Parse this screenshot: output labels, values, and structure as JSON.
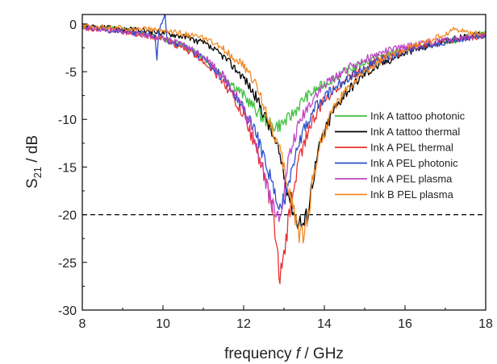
{
  "chart_data": {
    "type": "line",
    "xlabel_prefix": "frequency ",
    "xlabel_symbol": "f",
    "xlabel_unit": " / GHz",
    "ylabel_main": "S",
    "ylabel_sub": "21",
    "ylabel_unit": " / dB",
    "xlim": [
      8,
      18
    ],
    "ylim": [
      -30,
      1
    ],
    "xticks": [
      8,
      10,
      12,
      14,
      16,
      18
    ],
    "yticks": [
      0,
      -5,
      -10,
      -15,
      -20,
      -25,
      -30
    ],
    "grid": false,
    "legend_position": "right",
    "reference_line": {
      "y": -20,
      "style": "dashed",
      "color": "#000000"
    },
    "series": [
      {
        "name": "Ink A tattoo photonic",
        "color": "#3fbf3f",
        "x": [
          8,
          8.5,
          9,
          9.5,
          10,
          10.5,
          11,
          11.5,
          12,
          12.3,
          12.5,
          12.7,
          12.9,
          13.1,
          13.3,
          13.5,
          14,
          14.5,
          15,
          15.5,
          16,
          16.5,
          17,
          17.3,
          17.5,
          17.8,
          18
        ],
        "y": [
          -0.3,
          -0.4,
          -0.6,
          -1.0,
          -1.5,
          -2.3,
          -3.5,
          -5.3,
          -7.5,
          -9.0,
          -10.0,
          -10.7,
          -10.6,
          -10.0,
          -9.0,
          -7.8,
          -6.3,
          -5.0,
          -4.0,
          -3.2,
          -2.6,
          -2.2,
          -1.8,
          -1.7,
          -1.4,
          -1.1,
          -0.9
        ]
      },
      {
        "name": "Ink A tattoo thermal",
        "color": "#000000",
        "x": [
          8,
          9,
          10,
          10.5,
          11,
          11.5,
          12,
          12.3,
          12.6,
          12.9,
          13.1,
          13.3,
          13.5,
          13.6,
          13.7,
          13.9,
          14.2,
          14.5,
          15,
          15.5,
          16,
          16.5,
          17,
          17.5,
          18
        ],
        "y": [
          -0.3,
          -0.5,
          -0.9,
          -1.3,
          -2.0,
          -3.4,
          -5.6,
          -7.6,
          -10.3,
          -13.8,
          -17.5,
          -20.4,
          -21.0,
          -19.5,
          -16.5,
          -12.5,
          -9.3,
          -7.3,
          -5.2,
          -4.0,
          -3.0,
          -2.4,
          -1.8,
          -1.3,
          -1.0
        ]
      },
      {
        "name": "Ink A PEL thermal",
        "color": "#e8302f",
        "x": [
          8,
          9,
          9.5,
          10,
          10.5,
          11,
          11.5,
          12,
          12.3,
          12.5,
          12.7,
          12.8,
          12.9,
          13.0,
          13.1,
          13.2,
          13.4,
          13.6,
          14,
          14.5,
          15,
          15.5,
          16,
          16.5,
          17,
          17.5,
          18
        ],
        "y": [
          -0.4,
          -0.8,
          -1.1,
          -1.6,
          -2.5,
          -3.8,
          -6.0,
          -9.6,
          -12.8,
          -15.6,
          -19.4,
          -23.0,
          -26.5,
          -24.5,
          -21.0,
          -17.8,
          -13.7,
          -11.1,
          -7.9,
          -5.9,
          -4.5,
          -3.5,
          -2.8,
          -2.2,
          -1.8,
          -1.5,
          -1.3
        ]
      },
      {
        "name": "Ink A PEL photonic",
        "color": "#2b4fc9",
        "x": [
          8,
          8.5,
          9,
          9.5,
          9.8,
          9.85,
          9.9,
          10.05,
          10.1,
          10.3,
          10.5,
          11,
          11.5,
          12,
          12.3,
          12.5,
          12.7,
          12.85,
          13.0,
          13.1,
          13.3,
          13.5,
          13.8,
          14.2,
          14.6,
          15,
          15.5,
          16,
          16.5,
          17,
          17.5,
          18
        ],
        "y": [
          -0.4,
          -0.6,
          -0.8,
          -1.0,
          -1.2,
          -3.6,
          -0.8,
          1.0,
          -1.8,
          -2.0,
          -2.3,
          -3.6,
          -5.8,
          -8.9,
          -11.5,
          -13.9,
          -16.5,
          -19.9,
          -18.5,
          -16.5,
          -13.2,
          -11.0,
          -8.6,
          -6.8,
          -5.6,
          -4.6,
          -3.6,
          -2.9,
          -2.3,
          -1.9,
          -1.5,
          -1.2
        ]
      },
      {
        "name": "Ink A PEL plasma",
        "color": "#c043c5",
        "x": [
          8,
          9,
          10,
          10.5,
          11,
          11.5,
          11.8,
          12,
          12.3,
          12.5,
          12.7,
          12.8,
          12.9,
          13.0,
          13.1,
          13.3,
          13.5,
          13.8,
          14.2,
          14.6,
          15,
          15.5,
          16,
          16.5,
          17,
          17.5,
          18
        ],
        "y": [
          -0.4,
          -0.8,
          -1.5,
          -2.2,
          -3.3,
          -5.5,
          -7.2,
          -9.0,
          -12.2,
          -15.5,
          -18.8,
          -20.4,
          -19.8,
          -17.4,
          -14.5,
          -11.4,
          -9.3,
          -7.3,
          -5.7,
          -4.6,
          -3.7,
          -2.9,
          -2.4,
          -2.0,
          -1.7,
          -1.4,
          -1.2
        ]
      },
      {
        "name": "Ink B PEL plasma",
        "color": "#f08a24",
        "x": [
          8,
          8.5,
          9,
          9.5,
          10,
          10.5,
          11,
          11.5,
          12,
          12.3,
          12.6,
          12.9,
          13.1,
          13.3,
          13.4,
          13.5,
          13.6,
          13.7,
          13.9,
          14.2,
          14.5,
          15,
          15.5,
          16,
          16.5,
          17,
          17.2,
          17.5,
          17.8,
          18
        ],
        "y": [
          -0.2,
          -0.3,
          -0.4,
          -0.5,
          -0.7,
          -1.0,
          -1.5,
          -2.6,
          -4.4,
          -6.3,
          -9.6,
          -13.4,
          -17.0,
          -20.4,
          -22.3,
          -21.8,
          -20.1,
          -16.5,
          -12.5,
          -9.0,
          -7.2,
          -5.0,
          -3.6,
          -2.6,
          -1.9,
          -1.1,
          -0.5,
          -0.8,
          -1.0,
          -0.9
        ]
      }
    ]
  }
}
